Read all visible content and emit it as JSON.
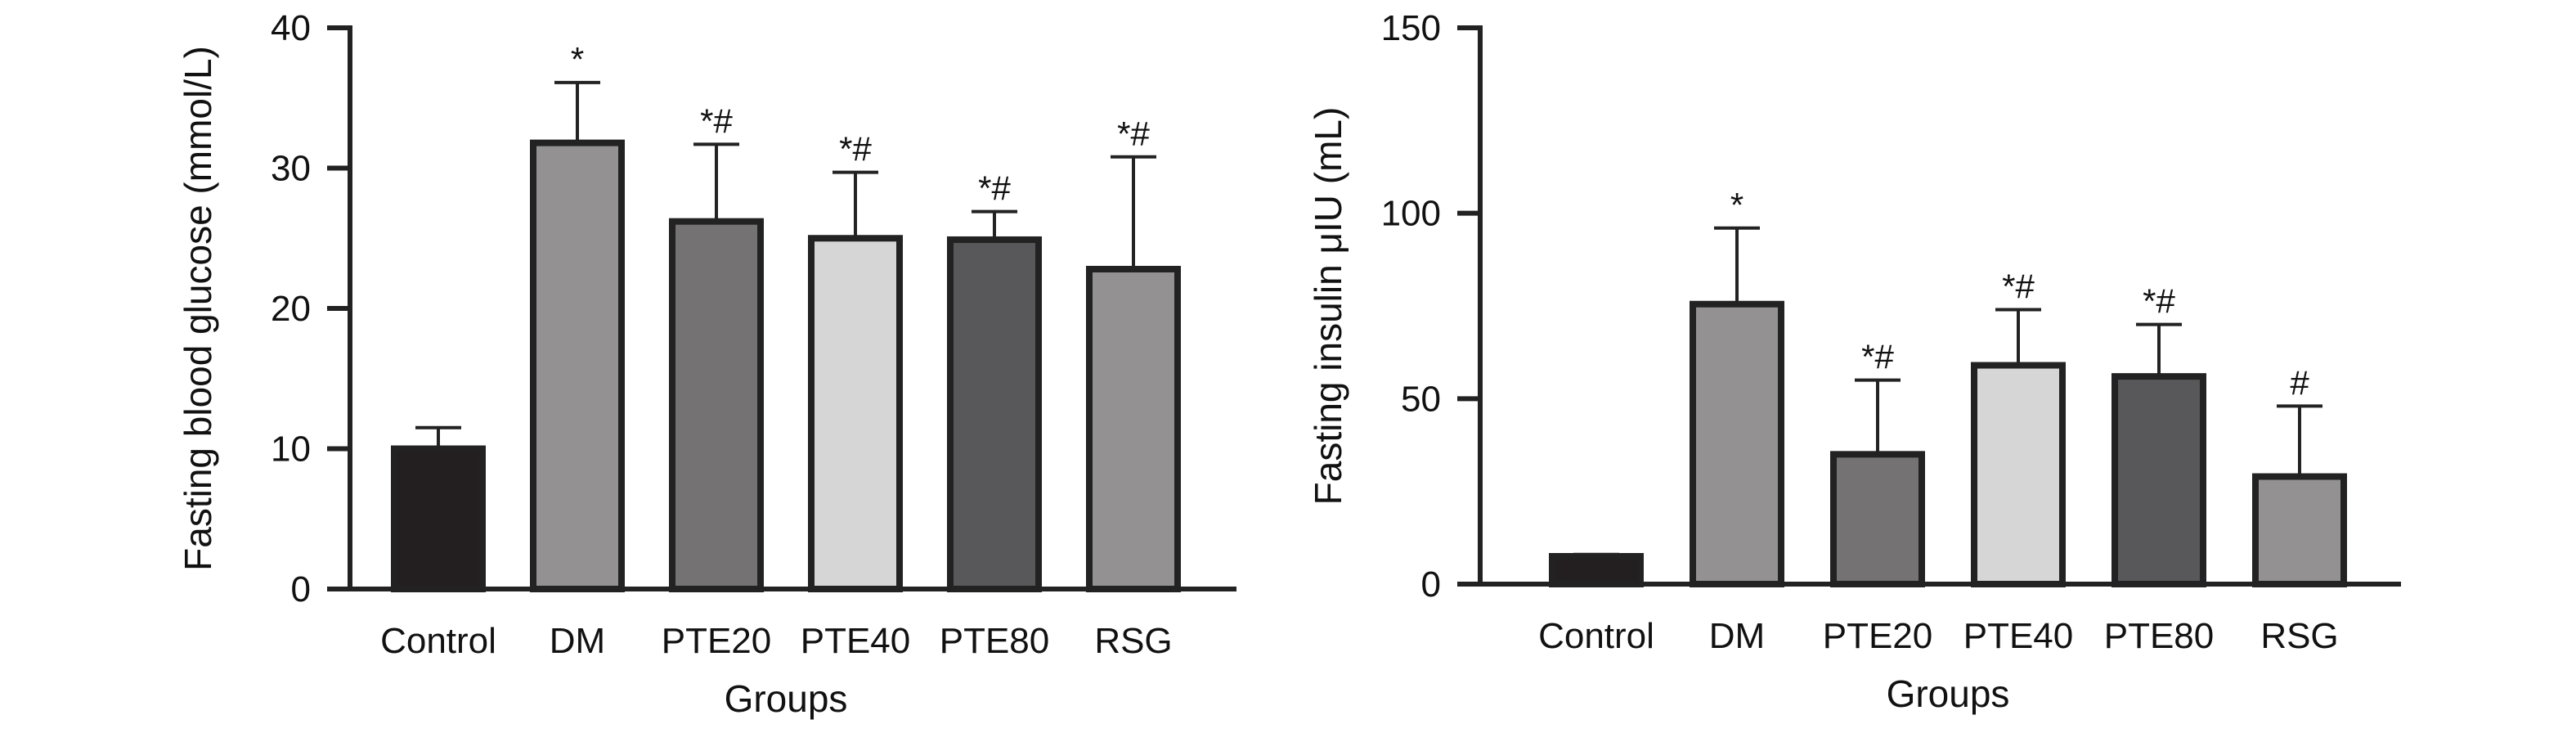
{
  "chart_data": [
    {
      "type": "bar",
      "xlabel": "Groups",
      "ylabel": "Fasting blood glucose (mmol/L)",
      "ylim": [
        0,
        40
      ],
      "yticks": [
        0,
        10,
        20,
        30,
        40
      ],
      "categories": [
        "Control",
        "DM",
        "PTE20",
        "PTE40",
        "PTE80",
        "RSG"
      ],
      "values": [
        10,
        31.8,
        26.2,
        25.0,
        24.9,
        22.8
      ],
      "error": [
        1.5,
        4.3,
        5.5,
        4.7,
        2.0,
        8.0
      ],
      "annotations": [
        "",
        "*",
        "*#",
        "*#",
        "*#",
        "*#"
      ],
      "colors": [
        "#231f20",
        "#939191",
        "#747273",
        "#d6d6d6",
        "#58585a",
        "#939191"
      ]
    },
    {
      "type": "bar",
      "xlabel": "Groups",
      "ylabel": "Fasting insulin μIU (mL)",
      "ylim": [
        0,
        150
      ],
      "yticks": [
        0,
        50,
        100,
        150
      ],
      "categories": [
        "Control",
        "DM",
        "PTE20",
        "PTE40",
        "PTE80",
        "RSG"
      ],
      "values": [
        7.5,
        75.5,
        35,
        59,
        56,
        29
      ],
      "error": [
        0.5,
        20.5,
        20,
        15,
        14,
        19
      ],
      "annotations": [
        "",
        "*",
        "*#",
        "*#",
        "*#",
        "#"
      ],
      "colors": [
        "#231f20",
        "#939191",
        "#747273",
        "#d6d6d6",
        "#58585a",
        "#939191"
      ]
    }
  ]
}
